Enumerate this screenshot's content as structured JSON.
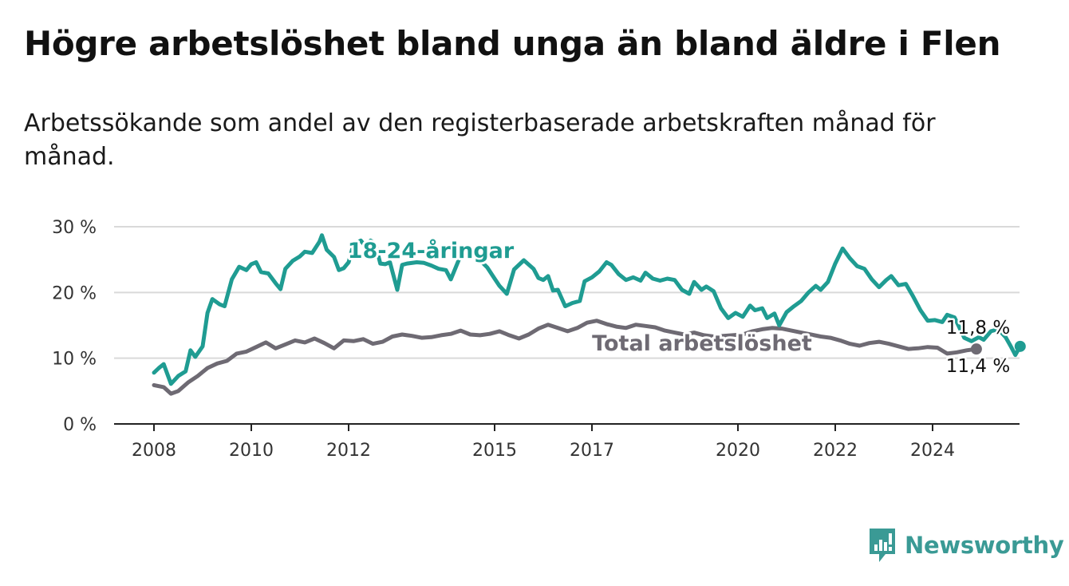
{
  "title": "Högre arbetslöshet bland unga än bland äldre i Flen",
  "subtitle": "Arbetssökande som andel av den registerbaserade arbetskraften månad för månad.",
  "brand": {
    "name": "Newsworthy",
    "icon": "newsworthy-logo-icon",
    "color": "#3a9a95"
  },
  "chart_data": {
    "type": "line",
    "y_ticks": [
      "0 %",
      "10 %",
      "20 %",
      "30 %"
    ],
    "ylim": [
      0,
      30
    ],
    "x_ticks": [
      {
        "value": 2008,
        "label": "2008"
      },
      {
        "value": 2010,
        "label": "2010"
      },
      {
        "value": 2012,
        "label": "2012"
      },
      {
        "value": 2015,
        "label": "2015"
      },
      {
        "value": 2017,
        "label": "2017"
      },
      {
        "value": 2020,
        "label": "2020"
      },
      {
        "value": 2022,
        "label": "2022"
      },
      {
        "value": 2024,
        "label": "2024"
      }
    ],
    "xlim": [
      2007.2,
      2025.8
    ],
    "grid": true,
    "series": [
      {
        "name": "Total arbetslöshet",
        "color": "#6e6a73",
        "end_label": "11,4 %",
        "points": [
          [
            2008.0,
            5.9
          ],
          [
            2008.2,
            5.6
          ],
          [
            2008.35,
            4.6
          ],
          [
            2008.5,
            5.0
          ],
          [
            2008.7,
            6.3
          ],
          [
            2008.9,
            7.3
          ],
          [
            2009.1,
            8.5
          ],
          [
            2009.3,
            9.2
          ],
          [
            2009.5,
            9.6
          ],
          [
            2009.7,
            10.7
          ],
          [
            2009.9,
            11.0
          ],
          [
            2010.1,
            11.7
          ],
          [
            2010.3,
            12.4
          ],
          [
            2010.5,
            11.5
          ],
          [
            2010.7,
            12.1
          ],
          [
            2010.9,
            12.7
          ],
          [
            2011.1,
            12.4
          ],
          [
            2011.3,
            13.0
          ],
          [
            2011.5,
            12.3
          ],
          [
            2011.7,
            11.5
          ],
          [
            2011.9,
            12.7
          ],
          [
            2012.1,
            12.6
          ],
          [
            2012.3,
            12.9
          ],
          [
            2012.5,
            12.2
          ],
          [
            2012.7,
            12.5
          ],
          [
            2012.9,
            13.3
          ],
          [
            2013.1,
            13.6
          ],
          [
            2013.3,
            13.4
          ],
          [
            2013.5,
            13.1
          ],
          [
            2013.7,
            13.2
          ],
          [
            2013.9,
            13.5
          ],
          [
            2014.1,
            13.7
          ],
          [
            2014.3,
            14.2
          ],
          [
            2014.5,
            13.6
          ],
          [
            2014.7,
            13.5
          ],
          [
            2014.9,
            13.7
          ],
          [
            2015.1,
            14.1
          ],
          [
            2015.3,
            13.5
          ],
          [
            2015.5,
            13.0
          ],
          [
            2015.7,
            13.6
          ],
          [
            2015.9,
            14.5
          ],
          [
            2016.1,
            15.1
          ],
          [
            2016.3,
            14.6
          ],
          [
            2016.5,
            14.1
          ],
          [
            2016.7,
            14.6
          ],
          [
            2016.9,
            15.4
          ],
          [
            2017.1,
            15.7
          ],
          [
            2017.3,
            15.2
          ],
          [
            2017.5,
            14.8
          ],
          [
            2017.7,
            14.6
          ],
          [
            2017.9,
            15.1
          ],
          [
            2018.1,
            14.9
          ],
          [
            2018.3,
            14.7
          ],
          [
            2018.5,
            14.2
          ],
          [
            2018.7,
            13.9
          ],
          [
            2018.9,
            13.6
          ],
          [
            2019.1,
            13.9
          ],
          [
            2019.3,
            13.5
          ],
          [
            2019.5,
            13.3
          ],
          [
            2019.7,
            13.4
          ],
          [
            2019.9,
            13.5
          ],
          [
            2020.1,
            13.6
          ],
          [
            2020.3,
            14.1
          ],
          [
            2020.5,
            14.4
          ],
          [
            2020.7,
            14.6
          ],
          [
            2020.9,
            14.5
          ],
          [
            2021.1,
            14.2
          ],
          [
            2021.3,
            13.9
          ],
          [
            2021.5,
            13.6
          ],
          [
            2021.7,
            13.3
          ],
          [
            2021.9,
            13.1
          ],
          [
            2022.1,
            12.7
          ],
          [
            2022.3,
            12.2
          ],
          [
            2022.5,
            11.9
          ],
          [
            2022.7,
            12.3
          ],
          [
            2022.9,
            12.5
          ],
          [
            2023.1,
            12.2
          ],
          [
            2023.3,
            11.8
          ],
          [
            2023.5,
            11.4
          ],
          [
            2023.7,
            11.5
          ],
          [
            2023.9,
            11.7
          ],
          [
            2024.1,
            11.6
          ],
          [
            2024.3,
            10.7
          ],
          [
            2024.5,
            10.9
          ],
          [
            2024.7,
            11.2
          ],
          [
            2024.9,
            11.4
          ]
        ]
      },
      {
        "name": "18-24-åringar",
        "color": "#1f9c92",
        "end_label": "11,8 %",
        "points": [
          [
            2008.0,
            7.8
          ],
          [
            2008.1,
            8.5
          ],
          [
            2008.2,
            9.1
          ],
          [
            2008.35,
            6.1
          ],
          [
            2008.5,
            7.3
          ],
          [
            2008.65,
            8.0
          ],
          [
            2008.75,
            11.2
          ],
          [
            2008.85,
            10.2
          ],
          [
            2009.0,
            11.8
          ],
          [
            2009.1,
            16.9
          ],
          [
            2009.2,
            19.0
          ],
          [
            2009.35,
            18.2
          ],
          [
            2009.45,
            17.9
          ],
          [
            2009.6,
            22.0
          ],
          [
            2009.75,
            23.9
          ],
          [
            2009.9,
            23.4
          ],
          [
            2010.0,
            24.3
          ],
          [
            2010.1,
            24.6
          ],
          [
            2010.2,
            23.1
          ],
          [
            2010.35,
            22.9
          ],
          [
            2010.5,
            21.4
          ],
          [
            2010.6,
            20.5
          ],
          [
            2010.7,
            23.6
          ],
          [
            2010.85,
            24.8
          ],
          [
            2011.0,
            25.5
          ],
          [
            2011.1,
            26.2
          ],
          [
            2011.25,
            26.0
          ],
          [
            2011.4,
            27.7
          ],
          [
            2011.45,
            28.7
          ],
          [
            2011.55,
            26.5
          ],
          [
            2011.7,
            25.4
          ],
          [
            2011.8,
            23.4
          ],
          [
            2011.9,
            23.7
          ],
          [
            2012.0,
            24.6
          ],
          [
            2012.1,
            27.3
          ],
          [
            2012.25,
            27.9
          ],
          [
            2012.35,
            27.0
          ],
          [
            2012.45,
            27.9
          ],
          [
            2012.55,
            27.4
          ],
          [
            2012.65,
            24.4
          ],
          [
            2012.75,
            24.3
          ],
          [
            2012.85,
            24.6
          ],
          [
            2013.0,
            20.4
          ],
          [
            2013.1,
            24.2
          ],
          [
            2013.2,
            24.4
          ],
          [
            2013.4,
            24.6
          ],
          [
            2013.55,
            24.5
          ],
          [
            2013.7,
            24.1
          ],
          [
            2013.85,
            23.6
          ],
          [
            2014.0,
            23.4
          ],
          [
            2014.1,
            22.0
          ],
          [
            2014.3,
            25.6
          ],
          [
            2014.5,
            26.2
          ],
          [
            2014.7,
            24.9
          ],
          [
            2014.85,
            23.8
          ],
          [
            2015.0,
            22.1
          ],
          [
            2015.1,
            21.0
          ],
          [
            2015.25,
            19.8
          ],
          [
            2015.4,
            23.5
          ],
          [
            2015.6,
            24.9
          ],
          [
            2015.8,
            23.6
          ],
          [
            2015.9,
            22.2
          ],
          [
            2016.0,
            21.9
          ],
          [
            2016.1,
            22.5
          ],
          [
            2016.2,
            20.3
          ],
          [
            2016.3,
            20.4
          ],
          [
            2016.45,
            17.9
          ],
          [
            2016.6,
            18.4
          ],
          [
            2016.75,
            18.7
          ],
          [
            2016.85,
            21.7
          ],
          [
            2017.0,
            22.3
          ],
          [
            2017.15,
            23.2
          ],
          [
            2017.3,
            24.6
          ],
          [
            2017.4,
            24.2
          ],
          [
            2017.55,
            22.8
          ],
          [
            2017.7,
            21.9
          ],
          [
            2017.85,
            22.3
          ],
          [
            2018.0,
            21.8
          ],
          [
            2018.1,
            23.0
          ],
          [
            2018.25,
            22.1
          ],
          [
            2018.4,
            21.8
          ],
          [
            2018.55,
            22.1
          ],
          [
            2018.7,
            21.9
          ],
          [
            2018.85,
            20.4
          ],
          [
            2019.0,
            19.8
          ],
          [
            2019.1,
            21.6
          ],
          [
            2019.25,
            20.4
          ],
          [
            2019.35,
            20.9
          ],
          [
            2019.5,
            20.2
          ],
          [
            2019.65,
            17.6
          ],
          [
            2019.8,
            16.1
          ],
          [
            2019.95,
            16.9
          ],
          [
            2020.1,
            16.3
          ],
          [
            2020.25,
            18.0
          ],
          [
            2020.35,
            17.3
          ],
          [
            2020.5,
            17.6
          ],
          [
            2020.6,
            16.1
          ],
          [
            2020.75,
            16.8
          ],
          [
            2020.85,
            15.0
          ],
          [
            2021.0,
            17.0
          ],
          [
            2021.15,
            17.9
          ],
          [
            2021.3,
            18.7
          ],
          [
            2021.45,
            20.0
          ],
          [
            2021.6,
            21.0
          ],
          [
            2021.7,
            20.4
          ],
          [
            2021.85,
            21.6
          ],
          [
            2022.0,
            24.4
          ],
          [
            2022.15,
            26.7
          ],
          [
            2022.3,
            25.2
          ],
          [
            2022.45,
            24.0
          ],
          [
            2022.6,
            23.6
          ],
          [
            2022.75,
            22.0
          ],
          [
            2022.9,
            20.8
          ],
          [
            2023.05,
            21.9
          ],
          [
            2023.15,
            22.5
          ],
          [
            2023.3,
            21.1
          ],
          [
            2023.45,
            21.3
          ],
          [
            2023.6,
            19.4
          ],
          [
            2023.75,
            17.3
          ],
          [
            2023.9,
            15.7
          ],
          [
            2024.05,
            15.8
          ],
          [
            2024.2,
            15.5
          ],
          [
            2024.3,
            16.6
          ],
          [
            2024.45,
            16.2
          ],
          [
            2024.55,
            14.7
          ],
          [
            2024.65,
            13.1
          ],
          [
            2024.8,
            12.6
          ],
          [
            2024.95,
            13.2
          ],
          [
            2025.05,
            12.8
          ],
          [
            2025.2,
            14.1
          ],
          [
            2025.35,
            14.4
          ],
          [
            2025.5,
            13.2
          ],
          [
            2025.6,
            11.9
          ],
          [
            2025.7,
            10.5
          ],
          [
            2025.8,
            11.8
          ]
        ]
      }
    ]
  }
}
